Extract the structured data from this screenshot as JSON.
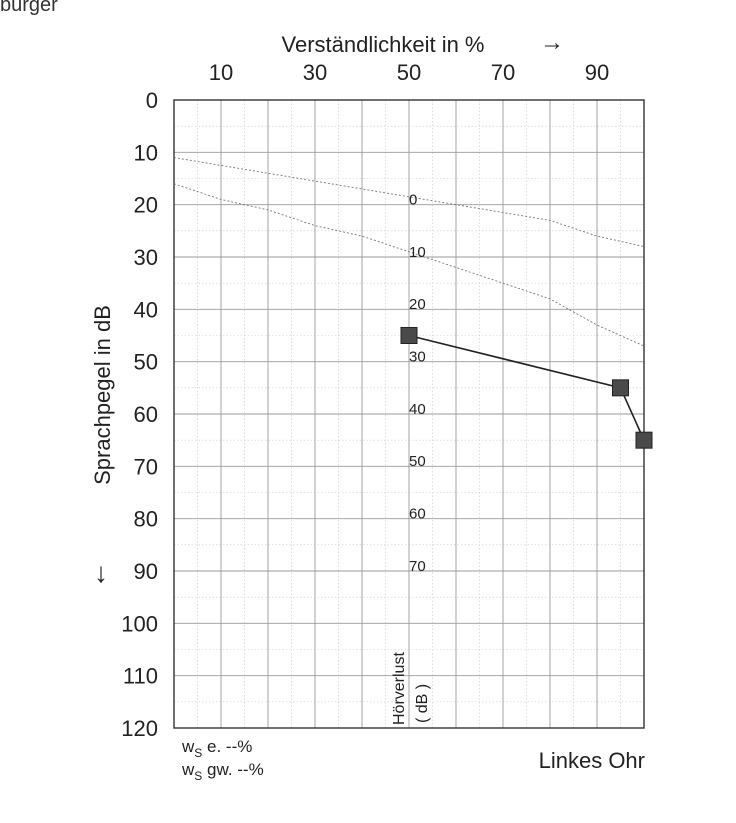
{
  "header_fragment": "burger",
  "chart_data": {
    "type": "scatter",
    "title": "",
    "xlabel": "Verständlichkeit in %",
    "x_arrow": "→",
    "ylabel": "Sprachpegel in dB",
    "y_arrow": "↓",
    "xlim": [
      0,
      100
    ],
    "ylim": [
      0,
      120
    ],
    "y_inverted": true,
    "x_ticks": [
      10,
      30,
      50,
      70,
      90
    ],
    "y_ticks": [
      0,
      10,
      20,
      30,
      40,
      50,
      60,
      70,
      80,
      90,
      100,
      110,
      120
    ],
    "grid": true,
    "reference_curves": [
      {
        "name": "0",
        "x": [
          0,
          20,
          40,
          60,
          80,
          90,
          100
        ],
        "y": [
          11,
          14,
          17,
          20,
          23,
          26,
          28
        ]
      },
      {
        "name": "10",
        "x": [
          0,
          10,
          20,
          30,
          40,
          50,
          60,
          70,
          80,
          90,
          100
        ],
        "y": [
          16,
          19,
          21,
          24,
          26,
          29,
          32,
          35,
          38,
          43,
          47
        ]
      }
    ],
    "hearing_loss_labels": {
      "title": "Hörverlust",
      "unit": "( dB )",
      "x": 50,
      "items": [
        {
          "text": "0",
          "y": 19
        },
        {
          "text": "10",
          "y": 29
        },
        {
          "text": "20",
          "y": 39
        },
        {
          "text": "30",
          "y": 49
        },
        {
          "text": "40",
          "y": 59
        },
        {
          "text": "50",
          "y": 69
        },
        {
          "text": "60",
          "y": 79
        },
        {
          "text": "70",
          "y": 89
        }
      ]
    },
    "series": [
      {
        "x": [
          50,
          95,
          100
        ],
        "y": [
          45,
          55,
          65
        ],
        "color": "#4a4a4a"
      }
    ]
  },
  "footer": {
    "ws_e_sub": "S",
    "ws_e": " e.   --%",
    "ws_gw_sub": "S",
    "ws_gw": " gw. --%",
    "ws_prefix": "w",
    "ear": "Linkes Ohr"
  }
}
